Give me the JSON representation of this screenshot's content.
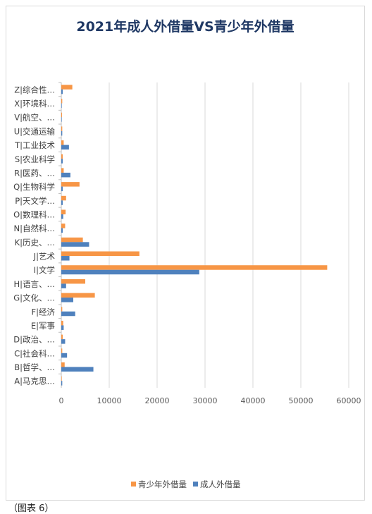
{
  "caption": "（图表 6）",
  "chart_data": {
    "type": "bar",
    "orientation": "horizontal",
    "title": "2021年成人外借量VS青少年外借量",
    "categories": [
      "A|马克思…",
      "B|哲学、…",
      "C|社会科…",
      "D|政治、…",
      "E|军事",
      "F|经济",
      "G|文化、…",
      "H|语言、…",
      "I|文学",
      "J|艺术",
      "K|历史、…",
      "N|自然科…",
      "O|数理科…",
      "P|天文学…",
      "Q|生物科学",
      "R|医药、…",
      "S|农业科学",
      "T|工业技术",
      "U|交通运输",
      "V|航空、…",
      "X|环境科…",
      "Z|综合性…"
    ],
    "series": [
      {
        "name": "青少年外借量",
        "color": "#f79646",
        "values": [
          100,
          700,
          200,
          300,
          400,
          200,
          7000,
          5000,
          55500,
          16300,
          4500,
          800,
          900,
          1000,
          3800,
          500,
          300,
          500,
          200,
          150,
          200,
          2300
        ]
      },
      {
        "name": "成人外借量",
        "color": "#4f81bd",
        "values": [
          200,
          6700,
          1200,
          800,
          500,
          2900,
          2500,
          1000,
          28800,
          1700,
          5800,
          300,
          400,
          300,
          300,
          1900,
          300,
          1600,
          200,
          100,
          100,
          300
        ]
      }
    ],
    "xlim": [
      0,
      60000
    ],
    "xticks": [
      "0",
      "10000",
      "20000",
      "30000",
      "40000",
      "50000",
      "60000"
    ],
    "grid": true,
    "legend_position": "bottom"
  }
}
